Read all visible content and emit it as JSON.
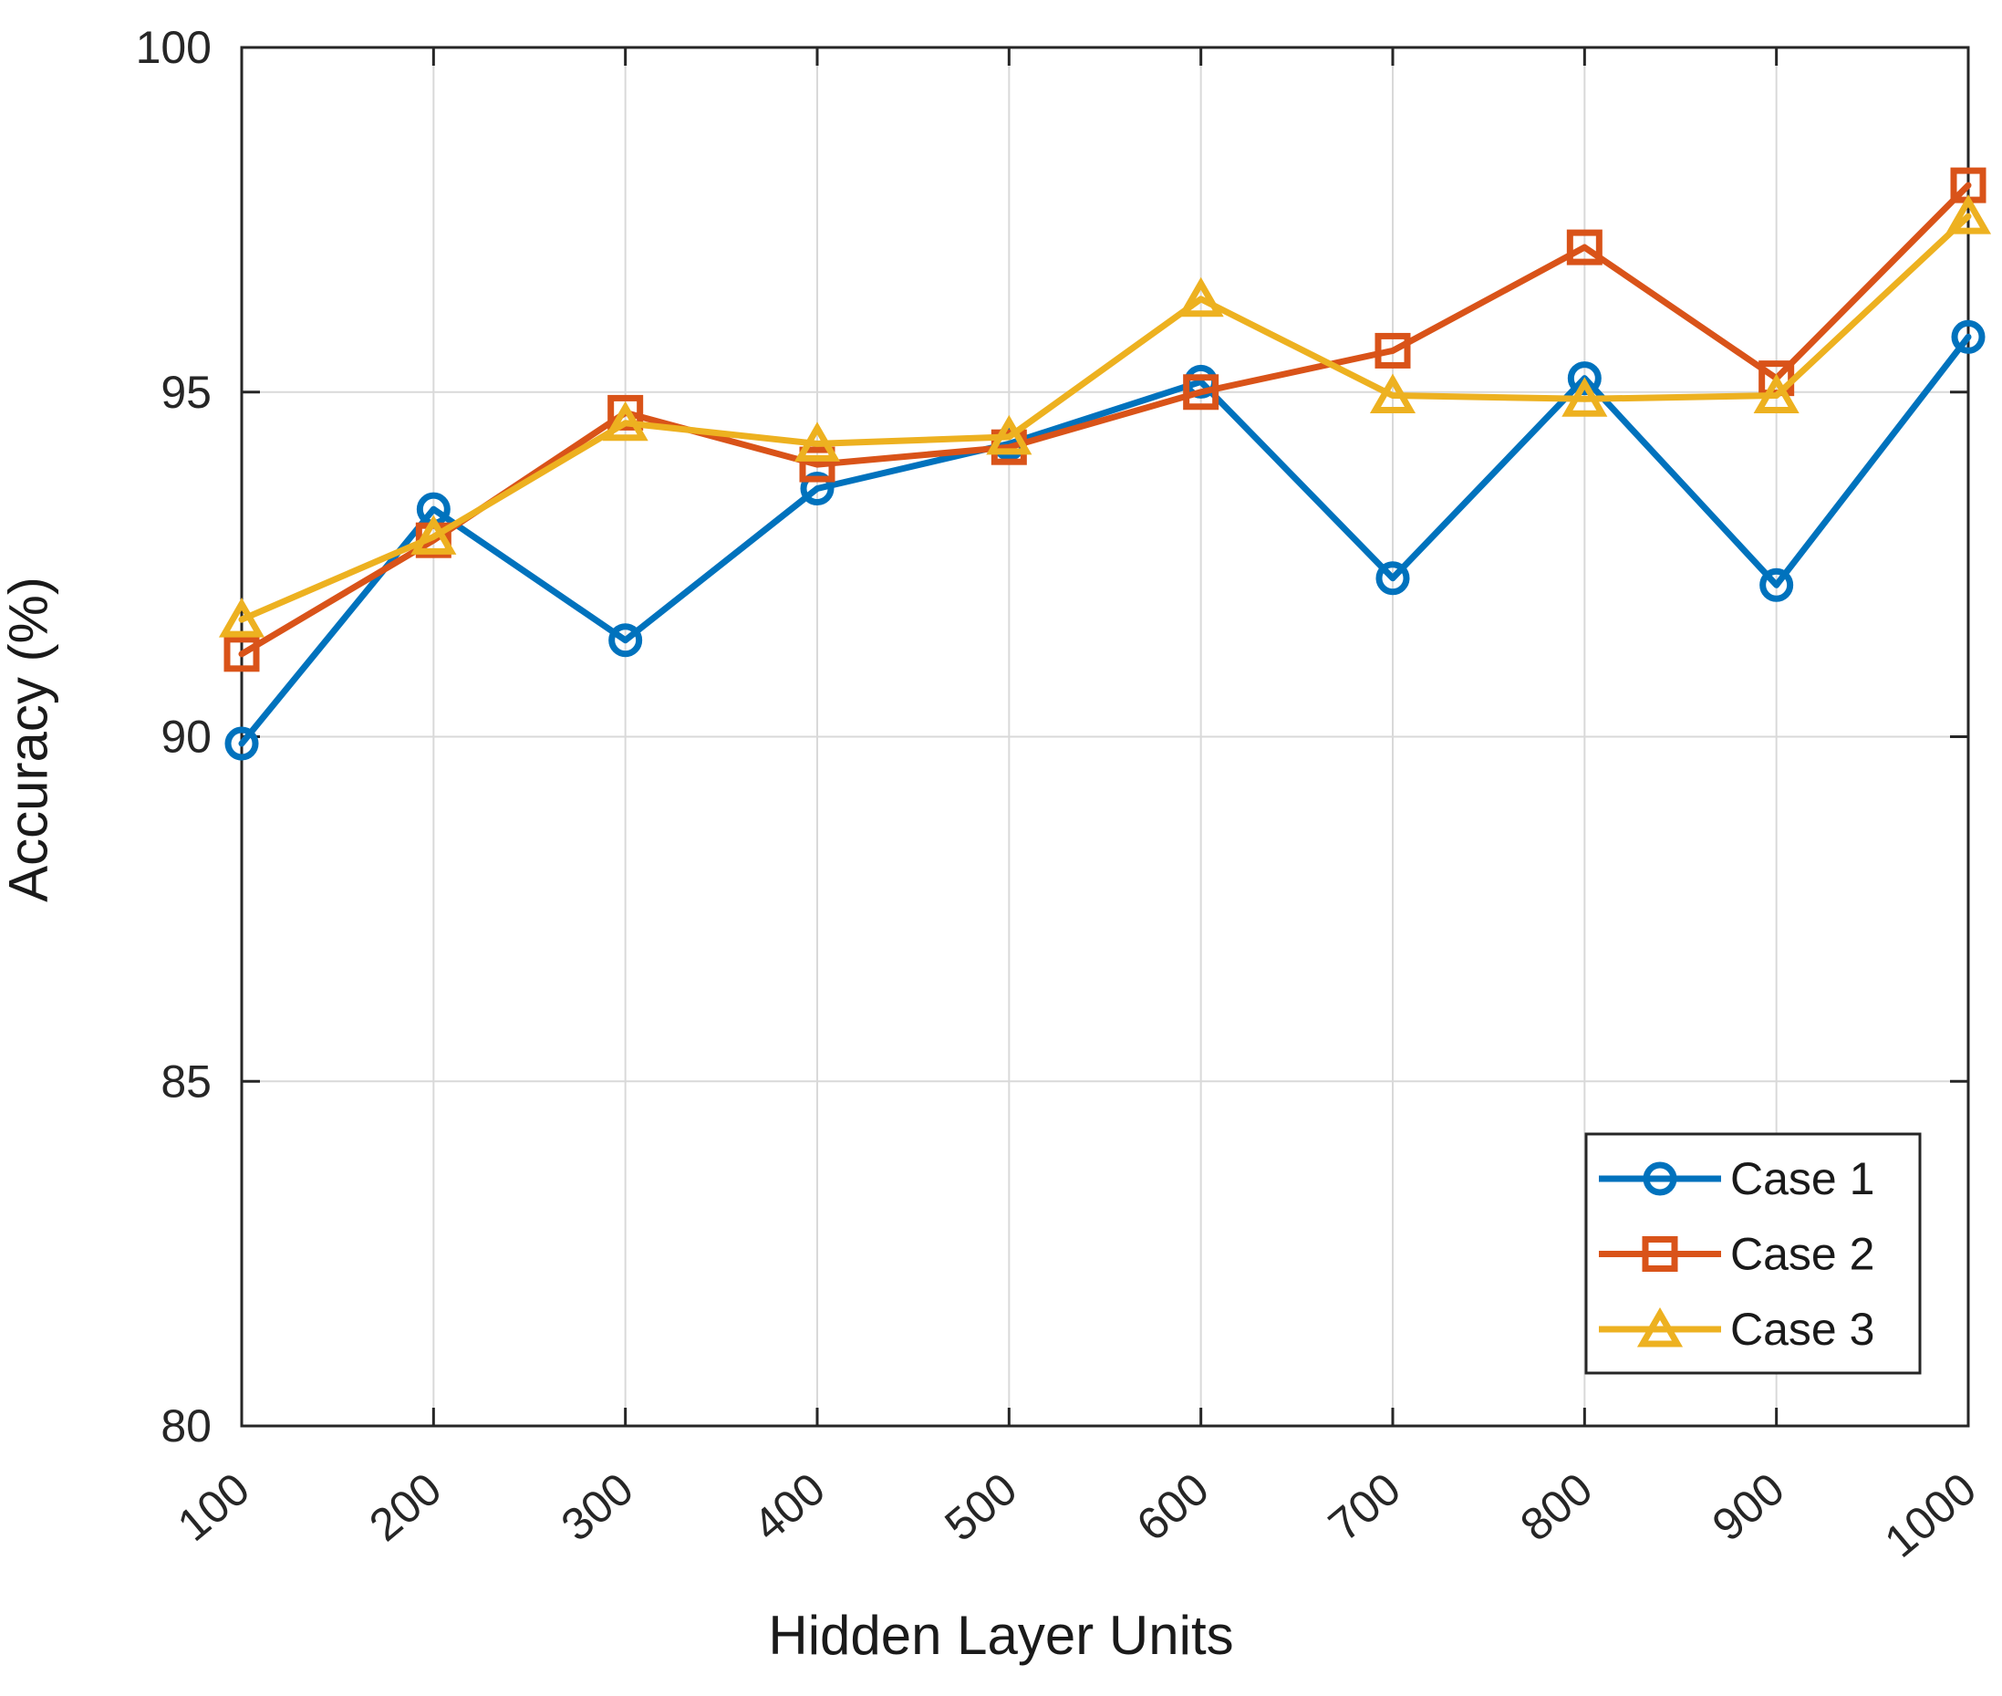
{
  "figure": {
    "background": "#ffffff",
    "axis_color": "#262626",
    "grid_color": "#d9d9d9"
  },
  "chart_data": {
    "type": "line",
    "title": "",
    "xlabel": "Hidden Layer Units",
    "ylabel": "Accuracy (%)",
    "x": [
      100,
      200,
      300,
      400,
      500,
      600,
      700,
      800,
      900,
      1000
    ],
    "xticks": [
      100,
      200,
      300,
      400,
      500,
      600,
      700,
      800,
      900,
      1000
    ],
    "yticks": [
      80,
      85,
      90,
      95,
      100
    ],
    "xlim": [
      100,
      1000
    ],
    "ylim": [
      80,
      100
    ],
    "grid": true,
    "x_tick_rotation_deg": -40,
    "legend_position": "inside-bottom-right",
    "series": [
      {
        "name": "Case 1",
        "color": "#0072BD",
        "marker": "circle",
        "values": [
          89.9,
          93.3,
          91.4,
          93.6,
          94.25,
          95.15,
          92.3,
          95.2,
          92.2,
          95.8
        ]
      },
      {
        "name": "Case 2",
        "color": "#D95319",
        "marker": "square",
        "values": [
          91.2,
          92.85,
          94.7,
          93.95,
          94.2,
          95.0,
          95.6,
          97.1,
          95.2,
          98.0
        ]
      },
      {
        "name": "Case 3",
        "color": "#EDB120",
        "marker": "triangle",
        "values": [
          91.7,
          92.9,
          94.55,
          94.25,
          94.35,
          96.35,
          94.95,
          94.9,
          94.95,
          97.55
        ]
      }
    ]
  }
}
